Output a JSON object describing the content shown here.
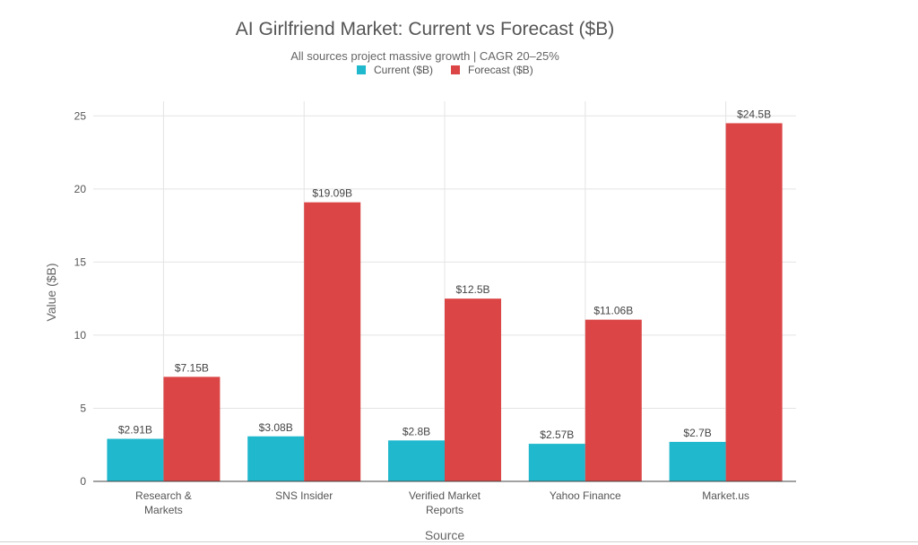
{
  "chart_data": {
    "type": "bar",
    "title": "AI Girlfriend Market: Current vs Forecast ($B)",
    "subtitle": "All sources project massive growth | CAGR 20–25%",
    "xlabel": "Source",
    "ylabel": "Value ($B)",
    "ylim": [
      0,
      26
    ],
    "yticks": [
      0,
      5,
      10,
      15,
      20,
      25
    ],
    "grid": true,
    "legend_position": "top-center",
    "categories": [
      [
        "Research &",
        "Markets"
      ],
      [
        "SNS Insider"
      ],
      [
        "Verified Market",
        "Reports"
      ],
      [
        "Yahoo Finance"
      ],
      [
        "Market.us"
      ]
    ],
    "series": [
      {
        "name": "Current ($B)",
        "color": "#1fb8cd",
        "values": [
          2.91,
          3.08,
          2.8,
          2.57,
          2.7
        ],
        "labels": [
          "$2.91B",
          "$3.08B",
          "$2.8B",
          "$2.57B",
          "$2.7B"
        ]
      },
      {
        "name": "Forecast ($B)",
        "color": "#db4545",
        "values": [
          7.15,
          19.09,
          12.5,
          11.06,
          24.5
        ],
        "labels": [
          "$7.15B",
          "$19.09B",
          "$12.5B",
          "$11.06B",
          "$24.5B"
        ]
      }
    ]
  }
}
